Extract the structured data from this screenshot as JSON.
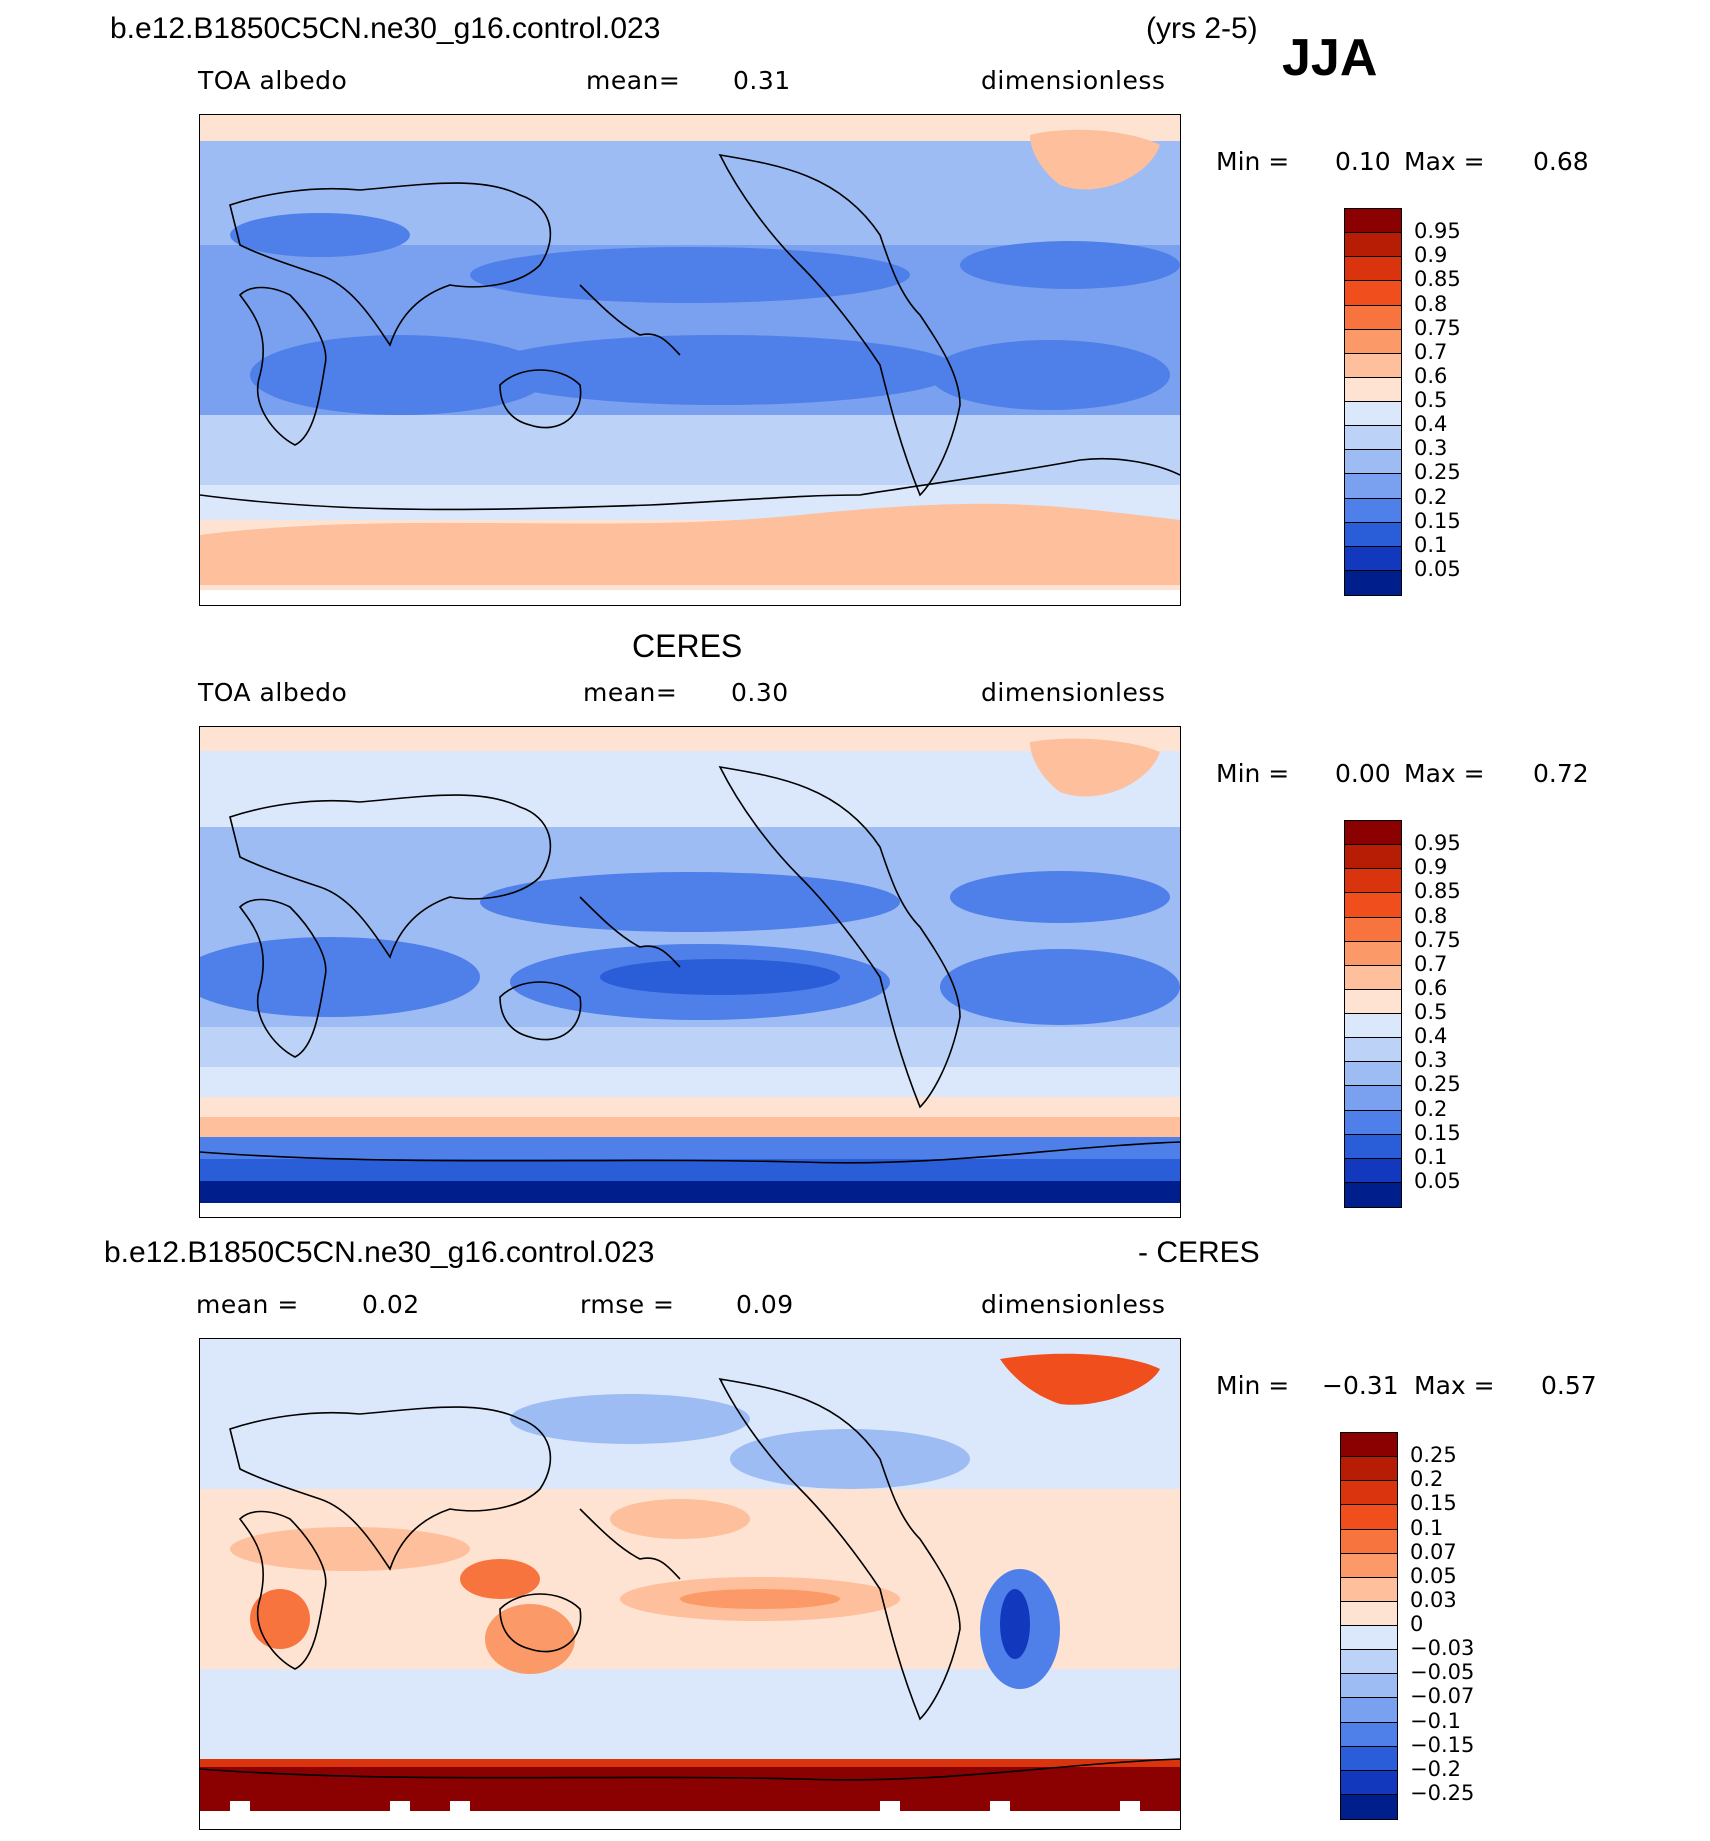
{
  "header": {
    "case_name": "b.e12.B1850C5CN.ne30_g16.control.023",
    "years": "(yrs 2-5)",
    "season": "JJA"
  },
  "panels": [
    {
      "title": "",
      "left_label": "TOA albedo",
      "center_label": "mean=",
      "center_value": "0.31",
      "right_label": "dimensionless",
      "minmax": {
        "min_label": "Min =",
        "min_value": "0.10",
        "max_label": "Max =",
        "max_value": "0.68"
      }
    },
    {
      "title": "CERES",
      "left_label": "TOA albedo",
      "center_label": "mean=",
      "center_value": "0.30",
      "right_label": "dimensionless",
      "minmax": {
        "min_label": "Min =",
        "min_value": "0.00",
        "max_label": "Max =",
        "max_value": "0.72"
      }
    },
    {
      "title": "b.e12.B1850C5CN.ne30_g16.control.023",
      "title_suffix": "- CERES",
      "left_label": "mean =",
      "left_value": "0.02",
      "center_label": "rmse =",
      "center_value": "0.09",
      "right_label": "dimensionless",
      "minmax": {
        "min_label": "Min =",
        "min_value": "−0.31",
        "max_label": "Max =",
        "max_value": "0.57"
      }
    }
  ],
  "colorbars": {
    "albedo": {
      "labels": [
        "0.95",
        "0.9",
        "0.85",
        "0.8",
        "0.75",
        "0.7",
        "0.6",
        "0.5",
        "0.4",
        "0.3",
        "0.25",
        "0.2",
        "0.15",
        "0.1",
        "0.05"
      ],
      "colors": [
        "#8b0000",
        "#b71c05",
        "#d9340e",
        "#f04e1c",
        "#f8743e",
        "#fb9a68",
        "#fdbf9c",
        "#fee3d2",
        "#dbe8fb",
        "#bcd3f7",
        "#9dbcf4",
        "#7aa1ef",
        "#4f7fe8",
        "#2a5ed9",
        "#1238be",
        "#001e8c"
      ]
    },
    "difference": {
      "labels": [
        "0.25",
        "0.2",
        "0.15",
        "0.1",
        "0.07",
        "0.05",
        "0.03",
        "0",
        "−0.03",
        "−0.05",
        "−0.07",
        "−0.1",
        "−0.15",
        "−0.2",
        "−0.25"
      ],
      "colors": [
        "#8b0000",
        "#b71c05",
        "#d9340e",
        "#f04e1c",
        "#f8743e",
        "#fb9a68",
        "#fdbf9c",
        "#fee3d2",
        "#dbe8fb",
        "#bcd3f7",
        "#9dbcf4",
        "#7aa1ef",
        "#4f7fe8",
        "#2a5ed9",
        "#1238be",
        "#001e8c"
      ]
    }
  },
  "chart_data": [
    {
      "type": "heatmap",
      "title": "b.e12.B1850C5CN.ne30_g16.control.023 (yrs 2-5) JJA",
      "variable": "TOA albedo",
      "units": "dimensionless",
      "mean": 0.31,
      "min": 0.1,
      "max": 0.68,
      "levels": [
        0.05,
        0.1,
        0.15,
        0.2,
        0.25,
        0.3,
        0.4,
        0.5,
        0.6,
        0.7,
        0.75,
        0.8,
        0.85,
        0.9,
        0.95
      ]
    },
    {
      "type": "heatmap",
      "title": "CERES",
      "variable": "TOA albedo",
      "units": "dimensionless",
      "mean": 0.3,
      "min": 0.0,
      "max": 0.72,
      "levels": [
        0.05,
        0.1,
        0.15,
        0.2,
        0.25,
        0.3,
        0.4,
        0.5,
        0.6,
        0.7,
        0.75,
        0.8,
        0.85,
        0.9,
        0.95
      ]
    },
    {
      "type": "heatmap",
      "title": "b.e12.B1850C5CN.ne30_g16.control.023 - CERES",
      "units": "dimensionless",
      "mean": 0.02,
      "rmse": 0.09,
      "min": -0.31,
      "max": 0.57,
      "levels": [
        -0.25,
        -0.2,
        -0.15,
        -0.1,
        -0.07,
        -0.05,
        -0.03,
        0,
        0.03,
        0.05,
        0.07,
        0.1,
        0.15,
        0.2,
        0.25
      ]
    }
  ]
}
